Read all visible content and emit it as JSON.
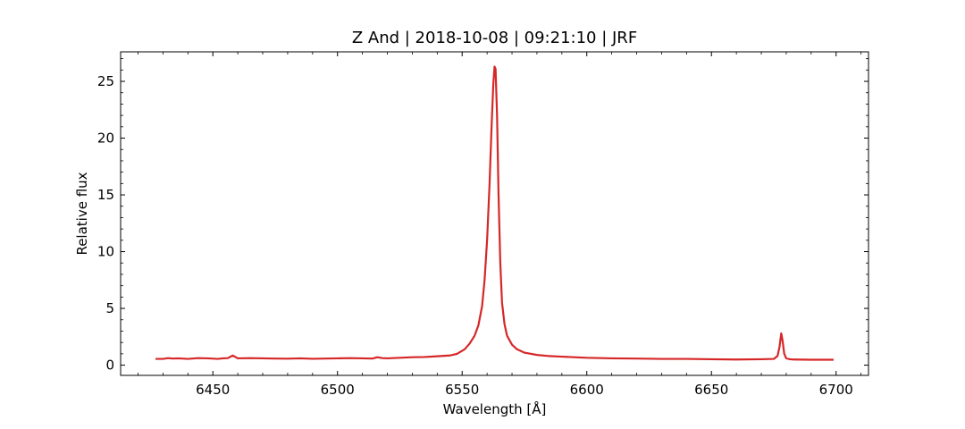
{
  "chart_data": {
    "type": "line",
    "title": "Z And | 2018-10-08 | 09:21:10 | JRF",
    "xlabel": "Wavelength [Å]",
    "ylabel": "Relative flux",
    "xlim": [
      6413,
      6713
    ],
    "ylim": [
      -0.9,
      27.6
    ],
    "xticks": [
      6450,
      6500,
      6550,
      6600,
      6650,
      6700
    ],
    "yticks": [
      0,
      5,
      10,
      15,
      20,
      25
    ],
    "grid": false,
    "series": [
      {
        "color": "#d62728",
        "x": [
          6427,
          6430,
          6432,
          6434,
          6436,
          6440,
          6444,
          6448,
          6452,
          6454,
          6456,
          6458,
          6460,
          6465,
          6470,
          6475,
          6480,
          6485,
          6490,
          6495,
          6500,
          6505,
          6510,
          6514,
          6516,
          6518,
          6520,
          6525,
          6530,
          6535,
          6540,
          6545,
          6548,
          6551,
          6553,
          6555,
          6556.5,
          6558,
          6559,
          6560,
          6561,
          6561.8,
          6562.5,
          6563,
          6563.4,
          6564,
          6564.6,
          6565.3,
          6566,
          6567,
          6568,
          6570,
          6572,
          6575,
          6580,
          6585,
          6590,
          6595,
          6600,
          6610,
          6620,
          6630,
          6640,
          6650,
          6660,
          6670,
          6675,
          6676.5,
          6677.3,
          6678,
          6678.5,
          6679.2,
          6680,
          6681.5,
          6683,
          6690,
          6699
        ],
        "y": [
          0.55,
          0.55,
          0.62,
          0.58,
          0.6,
          0.55,
          0.62,
          0.6,
          0.55,
          0.6,
          0.62,
          0.85,
          0.6,
          0.62,
          0.6,
          0.58,
          0.57,
          0.6,
          0.56,
          0.58,
          0.6,
          0.62,
          0.6,
          0.58,
          0.7,
          0.62,
          0.6,
          0.65,
          0.7,
          0.72,
          0.78,
          0.85,
          1.0,
          1.4,
          1.9,
          2.6,
          3.5,
          5.2,
          7.5,
          11.0,
          16.0,
          21.0,
          24.8,
          26.3,
          26.1,
          22.0,
          15.0,
          9.0,
          5.5,
          3.6,
          2.6,
          1.8,
          1.4,
          1.1,
          0.9,
          0.8,
          0.75,
          0.7,
          0.65,
          0.6,
          0.58,
          0.55,
          0.55,
          0.52,
          0.5,
          0.52,
          0.55,
          0.8,
          1.6,
          2.8,
          2.2,
          1.0,
          0.6,
          0.52,
          0.5,
          0.48,
          0.48
        ]
      }
    ]
  }
}
